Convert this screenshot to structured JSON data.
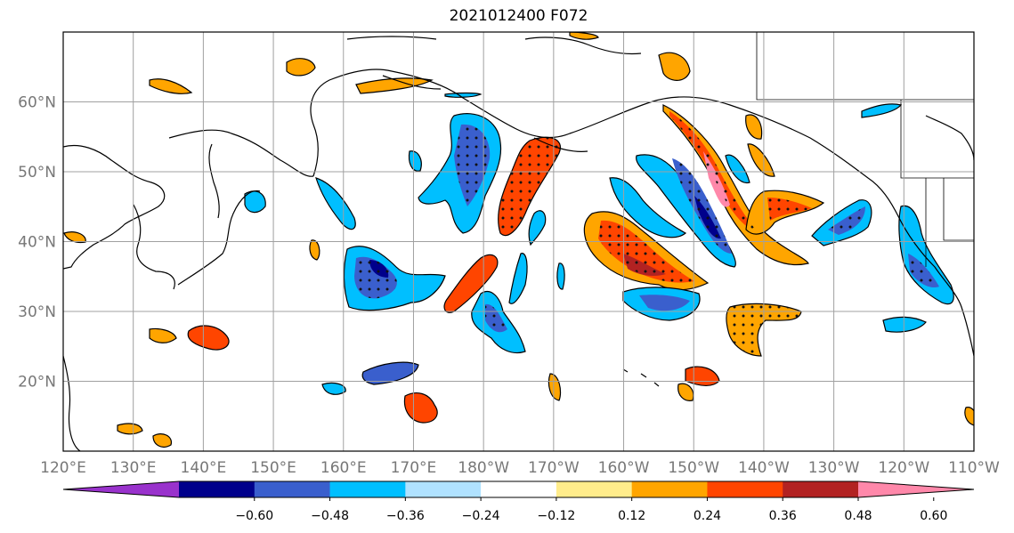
{
  "title": "2021012400 F072",
  "map": {
    "lon_range": [
      120,
      250
    ],
    "lat_range": [
      10,
      70
    ],
    "lon_ticks": [
      {
        "lon": 120,
        "label": "120°E"
      },
      {
        "lon": 130,
        "label": "130°E"
      },
      {
        "lon": 140,
        "label": "140°E"
      },
      {
        "lon": 150,
        "label": "150°E"
      },
      {
        "lon": 160,
        "label": "160°E"
      },
      {
        "lon": 170,
        "label": "170°E"
      },
      {
        "lon": 180,
        "label": "180°W"
      },
      {
        "lon": 190,
        "label": "170°W"
      },
      {
        "lon": 200,
        "label": "160°W"
      },
      {
        "lon": 210,
        "label": "150°W"
      },
      {
        "lon": 220,
        "label": "140°W"
      },
      {
        "lon": 230,
        "label": "130°W"
      },
      {
        "lon": 240,
        "label": "120°W"
      },
      {
        "lon": 250,
        "label": "110°W"
      }
    ],
    "lat_ticks": [
      {
        "lat": 20,
        "label": "20°N"
      },
      {
        "lat": 30,
        "label": "30°N"
      },
      {
        "lat": 40,
        "label": "40°N"
      },
      {
        "lat": 50,
        "label": "50°N"
      },
      {
        "lat": 60,
        "label": "60°N"
      }
    ],
    "grid": true,
    "stippling": true
  },
  "colorbar": {
    "colors": [
      "#9932cc",
      "#00008b",
      "#3a5fcd",
      "#00bfff",
      "#b0e2ff",
      "#ffffff",
      "#ffec8b",
      "#ffa500",
      "#ff4500",
      "#b22222",
      "#ff88aa"
    ],
    "labels": [
      "−0.60",
      "−0.48",
      "−0.36",
      "−0.24",
      "−0.12",
      "0.12",
      "0.24",
      "0.36",
      "0.48",
      "0.60"
    ],
    "extend": "both"
  }
}
